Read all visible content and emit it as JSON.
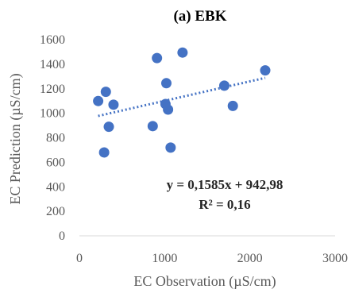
{
  "chart_data": {
    "type": "scatter",
    "title": "(a) EBK",
    "xlabel": "EC Observation (µS/cm)",
    "ylabel": "EC Prediction (µS/cm)",
    "xlim": [
      0,
      3000
    ],
    "ylim": [
      0,
      1600
    ],
    "xticks": [
      0,
      1000,
      2000,
      3000
    ],
    "yticks": [
      0,
      200,
      400,
      600,
      800,
      1000,
      1200,
      1400,
      1600
    ],
    "grid": false,
    "marker_color": "#4472C4",
    "trendline": {
      "style": "dotted",
      "color": "#4472C4",
      "slope": 0.1585,
      "intercept": 942.98,
      "x_range": [
        220,
        2180
      ]
    },
    "annotations": [
      "y = 0,1585x + 942,98",
      "R² = 0,16"
    ],
    "points": [
      {
        "x": 220,
        "y": 1100
      },
      {
        "x": 290,
        "y": 680
      },
      {
        "x": 310,
        "y": 1175
      },
      {
        "x": 345,
        "y": 890
      },
      {
        "x": 400,
        "y": 1070
      },
      {
        "x": 860,
        "y": 895
      },
      {
        "x": 910,
        "y": 1450
      },
      {
        "x": 1010,
        "y": 1075
      },
      {
        "x": 1020,
        "y": 1245
      },
      {
        "x": 1040,
        "y": 1030
      },
      {
        "x": 1070,
        "y": 720
      },
      {
        "x": 1210,
        "y": 1495
      },
      {
        "x": 1700,
        "y": 1225
      },
      {
        "x": 1800,
        "y": 1060
      },
      {
        "x": 2180,
        "y": 1350
      }
    ]
  }
}
